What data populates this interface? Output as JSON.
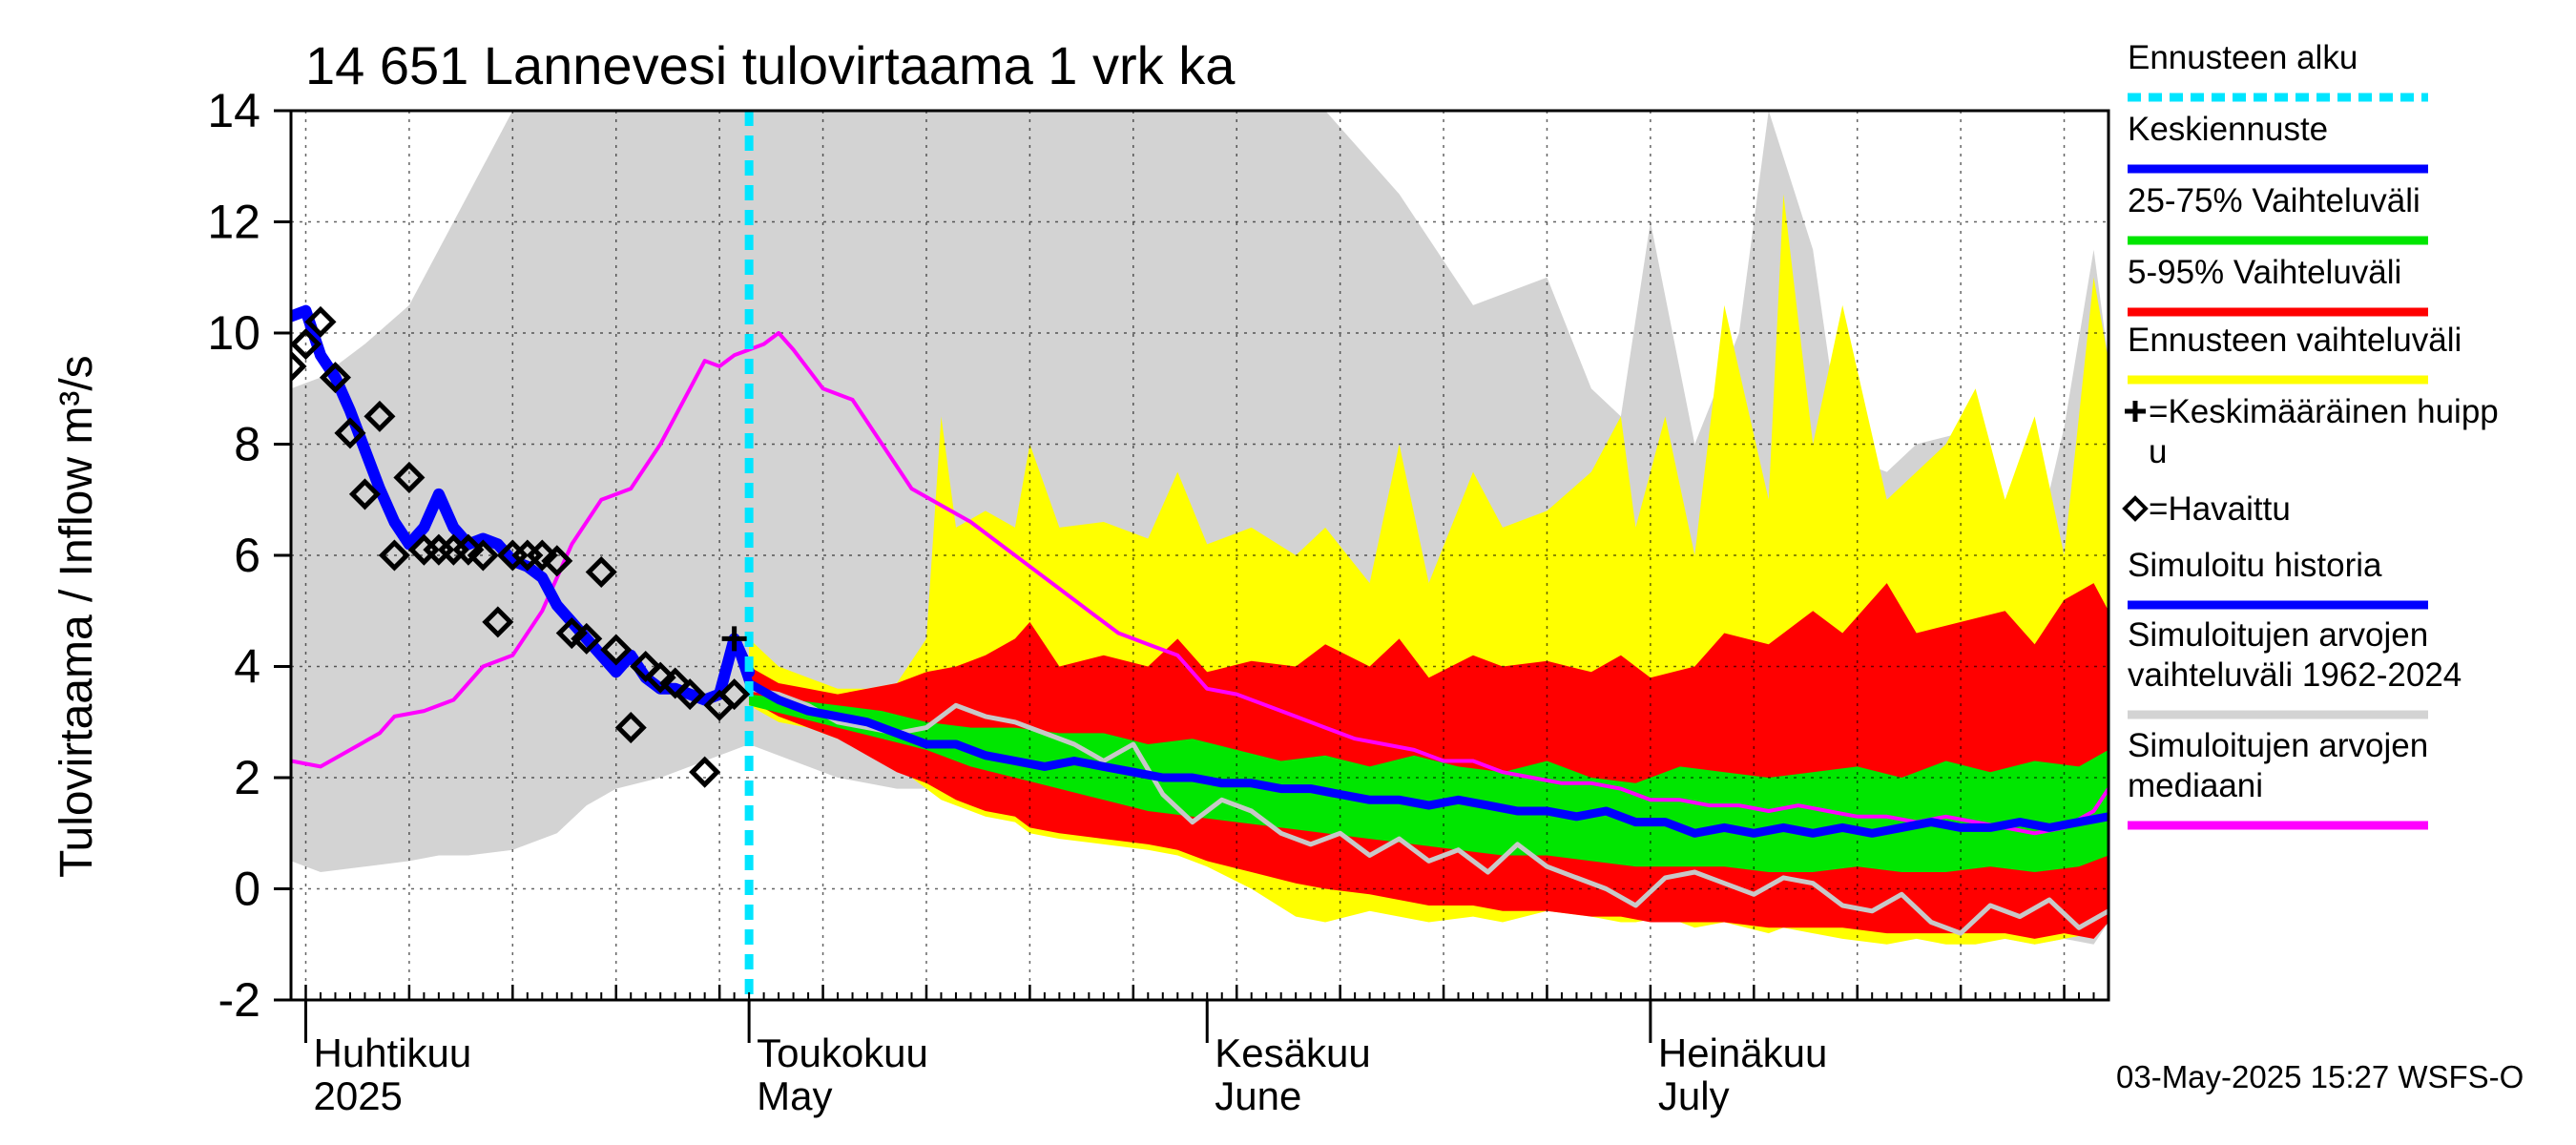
{
  "title": "14 651 Lannevesi tulovirtaama 1 vrk ka",
  "ylabel": "Tulovirtaama / Inflow    m³/s",
  "footer": "03-May-2025 15:27 WSFS-O",
  "legend": [
    {
      "label": "Ennusteen alku",
      "kind": "dotted-line",
      "color": "#00e5ff"
    },
    {
      "label": "Keskiennuste",
      "kind": "line",
      "color": "#0000ff"
    },
    {
      "label": "25-75% Vaihteluväli",
      "kind": "line",
      "color": "#00e600"
    },
    {
      "label": "5-95% Vaihteluväli",
      "kind": "line",
      "color": "#ff0000"
    },
    {
      "label": "Ennusteen vaihteluväli",
      "kind": "line",
      "color": "#ffff00"
    },
    {
      "label": "=Keskimääräinen huipp\nu",
      "kind": "plus",
      "color": "#000000"
    },
    {
      "label": "=Havaittu",
      "kind": "diamond",
      "color": "#000000"
    },
    {
      "label": "Simuloitu historia",
      "kind": "line",
      "color": "#0000ff"
    },
    {
      "label": "Simuloitujen arvojen\nvaihteluväli 1962-2024",
      "kind": "line",
      "color": "#d3d3d3"
    },
    {
      "label": "Simuloitujen arvojen\nmediaani",
      "kind": "line",
      "color": "#ff00ff"
    }
  ],
  "months": [
    {
      "label": "Huhtikuu",
      "sub": "2025"
    },
    {
      "label": "Toukokuu",
      "sub": "May"
    },
    {
      "label": "Kesäkuu",
      "sub": "June"
    },
    {
      "label": "Heinäkuu",
      "sub": "July"
    }
  ],
  "chart_data": {
    "type": "area",
    "ylim": [
      -2,
      14
    ],
    "yticks": [
      -2,
      0,
      2,
      4,
      6,
      8,
      10,
      12,
      14
    ],
    "x_unit": "days since 2025-03-31",
    "xlim": [
      0,
      123
    ],
    "forecast_start_day": 31,
    "month_starts": [
      1,
      31,
      62,
      92
    ],
    "grid": true,
    "legend_placement": "right",
    "series": [
      {
        "name": "Simuloitujen arvojen vaihteluväli 1962-2024",
        "color": "#d3d3d3",
        "x": [
          0,
          2,
          5,
          8,
          10,
          12,
          15,
          18,
          20,
          22,
          25,
          28,
          30,
          31,
          33,
          35,
          37,
          39,
          41,
          43,
          45,
          50,
          55,
          60,
          65,
          70,
          75,
          80,
          85,
          88,
          90,
          92,
          95,
          98,
          100,
          103,
          105,
          108,
          110,
          113,
          116,
          118,
          120,
          122,
          123
        ],
        "upper": [
          9.0,
          9.2,
          9.8,
          10.5,
          11.5,
          12.5,
          14,
          14,
          14,
          14,
          14,
          14,
          14,
          14,
          14,
          14,
          14,
          14,
          14,
          14,
          14,
          14,
          14,
          14,
          14,
          14,
          12.5,
          10.5,
          11.0,
          9.0,
          8.5,
          12.0,
          8.0,
          10.0,
          14,
          11.5,
          7.8,
          7.5,
          8.0,
          8.2,
          6.5,
          6.0,
          8.3,
          11.5,
          9.5
        ],
        "lower": [
          0.5,
          0.3,
          0.4,
          0.5,
          0.6,
          0.6,
          0.7,
          1.0,
          1.5,
          1.8,
          2.0,
          2.3,
          2.5,
          2.6,
          2.4,
          2.2,
          2.0,
          1.9,
          1.8,
          1.8,
          1.7,
          1.6,
          1.4,
          1.2,
          1.0,
          0.8,
          0.6,
          0.3,
          0.1,
          0.0,
          -0.1,
          -0.2,
          -0.3,
          -0.4,
          -0.5,
          -0.6,
          -0.7,
          -0.8,
          -0.8,
          -0.9,
          -0.9,
          -1.0,
          -0.9,
          -1.0,
          -0.6
        ]
      },
      {
        "name": "Ennusteen vaihteluväli",
        "color": "#ffff00",
        "x": [
          31,
          33,
          35,
          37,
          39,
          41,
          43,
          44,
          45,
          47,
          49,
          50,
          52,
          55,
          58,
          60,
          62,
          65,
          68,
          70,
          73,
          75,
          77,
          80,
          82,
          85,
          88,
          90,
          91,
          93,
          95,
          97,
          100,
          101,
          103,
          105,
          108,
          110,
          112,
          114,
          116,
          118,
          120,
          122,
          123
        ],
        "upper": [
          4.5,
          4.0,
          3.8,
          3.6,
          3.6,
          3.7,
          4.5,
          8.5,
          6.5,
          6.8,
          6.5,
          8.0,
          6.5,
          6.6,
          6.3,
          7.5,
          6.2,
          6.5,
          6.0,
          6.5,
          5.5,
          8.0,
          5.5,
          7.5,
          6.5,
          6.8,
          7.5,
          8.5,
          6.5,
          8.5,
          6.0,
          10.5,
          7.0,
          12.5,
          8.0,
          10.5,
          7.0,
          7.5,
          8.0,
          9.0,
          7.0,
          8.5,
          6.0,
          11.0,
          9.5
        ],
        "lower": [
          3.3,
          3.0,
          2.9,
          2.7,
          2.5,
          2.2,
          1.8,
          1.6,
          1.5,
          1.3,
          1.2,
          1.0,
          0.9,
          0.8,
          0.7,
          0.6,
          0.4,
          0.0,
          -0.5,
          -0.6,
          -0.4,
          -0.5,
          -0.6,
          -0.5,
          -0.6,
          -0.4,
          -0.5,
          -0.6,
          -0.6,
          -0.5,
          -0.7,
          -0.6,
          -0.8,
          -0.7,
          -0.8,
          -0.9,
          -1.0,
          -0.9,
          -1.0,
          -1.0,
          -0.9,
          -1.0,
          -0.9,
          -0.8,
          -0.3
        ]
      },
      {
        "name": "5-95% Vaihteluväli",
        "color": "#ff0000",
        "x": [
          31,
          33,
          35,
          37,
          39,
          41,
          43,
          45,
          47,
          49,
          50,
          52,
          55,
          58,
          60,
          62,
          65,
          68,
          70,
          73,
          75,
          77,
          80,
          82,
          85,
          88,
          90,
          92,
          95,
          97,
          100,
          103,
          105,
          108,
          110,
          113,
          116,
          118,
          120,
          122,
          123
        ],
        "upper": [
          4.0,
          3.7,
          3.6,
          3.5,
          3.6,
          3.7,
          3.9,
          4.0,
          4.2,
          4.5,
          4.8,
          4.0,
          4.2,
          4.0,
          4.5,
          3.9,
          4.1,
          4.0,
          4.4,
          4.0,
          4.5,
          3.8,
          4.2,
          4.0,
          4.1,
          3.9,
          4.2,
          3.8,
          4.0,
          4.6,
          4.4,
          5.0,
          4.6,
          5.5,
          4.6,
          4.8,
          5.0,
          4.4,
          5.2,
          5.5,
          5.0
        ],
        "lower": [
          3.4,
          3.1,
          2.9,
          2.7,
          2.4,
          2.1,
          1.9,
          1.6,
          1.4,
          1.3,
          1.1,
          1.0,
          0.9,
          0.8,
          0.7,
          0.5,
          0.3,
          0.1,
          0.0,
          -0.1,
          -0.2,
          -0.3,
          -0.3,
          -0.4,
          -0.4,
          -0.5,
          -0.5,
          -0.6,
          -0.6,
          -0.6,
          -0.7,
          -0.7,
          -0.7,
          -0.8,
          -0.8,
          -0.8,
          -0.8,
          -0.9,
          -0.8,
          -0.9,
          -0.6
        ]
      },
      {
        "name": "25-75% Vaihteluväli",
        "color": "#00e600",
        "x": [
          31,
          34,
          37,
          40,
          43,
          46,
          49,
          52,
          55,
          58,
          61,
          64,
          67,
          70,
          73,
          76,
          79,
          82,
          85,
          88,
          91,
          94,
          97,
          100,
          103,
          106,
          109,
          112,
          115,
          118,
          121,
          123
        ],
        "upper": [
          3.5,
          3.4,
          3.3,
          3.2,
          3.0,
          2.9,
          2.9,
          2.8,
          2.8,
          2.6,
          2.7,
          2.5,
          2.3,
          2.4,
          2.2,
          2.4,
          2.2,
          2.1,
          2.3,
          2.0,
          1.9,
          2.2,
          2.1,
          2.0,
          2.1,
          2.2,
          2.0,
          2.3,
          2.1,
          2.3,
          2.2,
          2.5
        ],
        "lower": [
          3.3,
          3.1,
          2.9,
          2.7,
          2.5,
          2.2,
          2.0,
          1.8,
          1.6,
          1.4,
          1.3,
          1.2,
          1.1,
          1.0,
          0.9,
          0.8,
          0.7,
          0.6,
          0.6,
          0.5,
          0.4,
          0.4,
          0.4,
          0.3,
          0.3,
          0.4,
          0.3,
          0.3,
          0.4,
          0.3,
          0.4,
          0.6
        ]
      },
      {
        "name": "Simuloitujen arvojen mediaani",
        "color": "#ff00ff",
        "x": [
          0,
          2,
          4,
          6,
          7,
          9,
          11,
          13,
          15,
          17,
          19,
          21,
          23,
          25,
          26,
          27,
          28,
          29,
          30,
          31,
          32,
          33,
          34,
          36,
          38,
          40,
          42,
          44,
          46,
          48,
          50,
          52,
          54,
          56,
          58,
          60,
          62,
          64,
          66,
          68,
          70,
          72,
          74,
          76,
          78,
          80,
          82,
          84,
          86,
          88,
          90,
          92,
          94,
          96,
          98,
          100,
          102,
          104,
          106,
          108,
          110,
          112,
          114,
          116,
          118,
          120,
          122,
          123
        ],
        "y": [
          2.3,
          2.2,
          2.5,
          2.8,
          3.1,
          3.2,
          3.4,
          4.0,
          4.2,
          5.0,
          6.2,
          7.0,
          7.2,
          8.0,
          8.5,
          9.0,
          9.5,
          9.4,
          9.6,
          9.7,
          9.8,
          10.0,
          9.7,
          9.0,
          8.8,
          8.0,
          7.2,
          6.9,
          6.6,
          6.2,
          5.8,
          5.4,
          5.0,
          4.6,
          4.4,
          4.2,
          3.6,
          3.5,
          3.3,
          3.1,
          2.9,
          2.7,
          2.6,
          2.5,
          2.3,
          2.3,
          2.1,
          2.0,
          1.9,
          1.9,
          1.8,
          1.6,
          1.6,
          1.5,
          1.5,
          1.4,
          1.5,
          1.4,
          1.3,
          1.3,
          1.2,
          1.3,
          1.2,
          1.1,
          1.0,
          1.1,
          1.4,
          1.8
        ]
      },
      {
        "name": "Simuloitu historia",
        "color": "#0000ff",
        "x": [
          0,
          1,
          2,
          3,
          4,
          5,
          6,
          7,
          8,
          9,
          10,
          11,
          12,
          13,
          14,
          15,
          16,
          17,
          18,
          19,
          20,
          21,
          22,
          23,
          24,
          25,
          26,
          27,
          28,
          29,
          30,
          31
        ],
        "y": [
          10.3,
          10.4,
          9.6,
          9.2,
          8.6,
          7.9,
          7.2,
          6.6,
          6.2,
          6.5,
          7.1,
          6.5,
          6.2,
          6.3,
          6.2,
          5.9,
          5.8,
          5.6,
          5.1,
          4.8,
          4.5,
          4.2,
          3.9,
          4.2,
          3.8,
          3.6,
          3.6,
          3.5,
          3.4,
          3.5,
          4.5,
          3.9
        ]
      },
      {
        "name": "Keskiennuste",
        "color": "#0000ff",
        "x": [
          30,
          31,
          33,
          35,
          37,
          39,
          41,
          43,
          45,
          47,
          49,
          51,
          53,
          55,
          57,
          59,
          61,
          63,
          65,
          67,
          69,
          71,
          73,
          75,
          77,
          79,
          81,
          83,
          85,
          87,
          89,
          91,
          93,
          95,
          97,
          99,
          101,
          103,
          105,
          107,
          109,
          111,
          113,
          115,
          117,
          119,
          121,
          123
        ],
        "y": [
          4.5,
          3.7,
          3.4,
          3.2,
          3.1,
          3.0,
          2.8,
          2.6,
          2.6,
          2.4,
          2.3,
          2.2,
          2.3,
          2.2,
          2.1,
          2.0,
          2.0,
          1.9,
          1.9,
          1.8,
          1.8,
          1.7,
          1.6,
          1.6,
          1.5,
          1.6,
          1.5,
          1.4,
          1.4,
          1.3,
          1.4,
          1.2,
          1.2,
          1.0,
          1.1,
          1.0,
          1.1,
          1.0,
          1.1,
          1.0,
          1.1,
          1.2,
          1.1,
          1.1,
          1.2,
          1.1,
          1.2,
          1.3
        ]
      },
      {
        "name": "Grey trace",
        "color": "#c8c8c8",
        "x": [
          31,
          33,
          35,
          37,
          39,
          41,
          43,
          45,
          47,
          49,
          51,
          53,
          55,
          57,
          59,
          61,
          63,
          65,
          67,
          69,
          71,
          73,
          75,
          77,
          79,
          81,
          83,
          85,
          87,
          89,
          91,
          93,
          95,
          97,
          99,
          101,
          103,
          105,
          107,
          109,
          111,
          113,
          115,
          117,
          119,
          121,
          123
        ],
        "y": [
          3.6,
          3.5,
          3.3,
          3.0,
          2.9,
          2.8,
          2.9,
          3.3,
          3.1,
          3.0,
          2.8,
          2.6,
          2.3,
          2.6,
          1.7,
          1.2,
          1.6,
          1.4,
          1.0,
          0.8,
          1.0,
          0.6,
          0.9,
          0.5,
          0.7,
          0.3,
          0.8,
          0.4,
          0.2,
          0.0,
          -0.3,
          0.2,
          0.3,
          0.1,
          -0.1,
          0.2,
          0.1,
          -0.3,
          -0.4,
          -0.1,
          -0.6,
          -0.8,
          -0.3,
          -0.5,
          -0.2,
          -0.7,
          -0.4
        ]
      }
    ],
    "observed": {
      "name": "Havaittu",
      "x": [
        0,
        1,
        2,
        3,
        4,
        5,
        6,
        7,
        8,
        9,
        10,
        11,
        12,
        13,
        14,
        15,
        16,
        17,
        18,
        19,
        20,
        21,
        22,
        23,
        24,
        25,
        26,
        27,
        28,
        29,
        30
      ],
      "y": [
        9.4,
        9.8,
        10.2,
        9.2,
        8.2,
        7.1,
        8.5,
        6.0,
        7.4,
        6.1,
        6.1,
        6.1,
        6.1,
        6.0,
        4.8,
        6.0,
        6.0,
        6.0,
        5.9,
        4.6,
        4.5,
        5.7,
        4.3,
        2.9,
        4.0,
        3.8,
        3.7,
        3.5,
        2.1,
        3.3,
        3.5
      ]
    },
    "average_peak": {
      "name": "Keskimääräinen huippu",
      "x": 30,
      "y": 4.5
    }
  }
}
